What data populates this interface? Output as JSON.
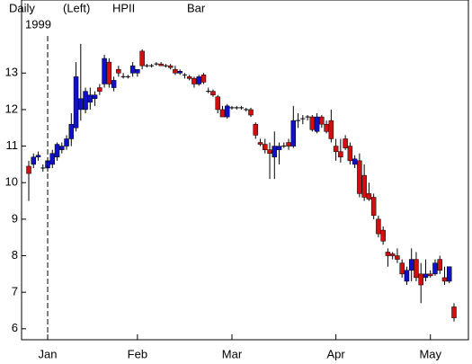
{
  "chart_data": {
    "type": "candlestick",
    "period": "Daily",
    "year": "1999",
    "scale": "(Left)",
    "symbol": "HPII",
    "style": "Bar",
    "up_color": "#1010c8",
    "down_color": "#d01010",
    "ylim": [
      5.7,
      15
    ],
    "yticks": [
      6,
      7,
      8,
      9,
      10,
      11,
      12,
      13
    ],
    "categories": [
      null,
      null,
      null,
      null,
      "Jan",
      null,
      null,
      null,
      null,
      null,
      null,
      null,
      null,
      null,
      null,
      null,
      null,
      null,
      null,
      null,
      null,
      null,
      null,
      "Feb",
      null,
      null,
      null,
      null,
      null,
      null,
      null,
      null,
      null,
      null,
      null,
      null,
      null,
      null,
      null,
      null,
      null,
      null,
      null,
      "Mar",
      null,
      null,
      null,
      null,
      null,
      null,
      null,
      null,
      null,
      null,
      null,
      null,
      null,
      null,
      null,
      null,
      null,
      null,
      null,
      null,
      null,
      "Apr",
      null,
      null,
      null,
      null,
      null,
      null,
      null,
      null,
      null,
      null,
      null,
      null,
      null,
      null,
      null,
      null,
      null,
      null,
      null,
      "May",
      null,
      null,
      null,
      null,
      null
    ],
    "open": [
      10.45,
      10.5,
      10.7,
      10.4,
      10.4,
      10.5,
      10.7,
      10.9,
      11.0,
      11.2,
      11.5,
      12.0,
      12.0,
      12.2,
      12.3,
      12.6,
      12.7,
      13.3,
      12.6,
      13.1,
      12.9,
      12.9,
      13.0,
      13.0,
      13.6,
      13.2,
      13.2,
      13.25,
      13.25,
      13.2,
      13.2,
      13.1,
      13.0,
      12.95,
      12.9,
      12.85,
      12.7,
      12.95,
      12.5,
      12.5,
      12.35,
      12.0,
      11.8,
      12.05,
      12.05,
      12.05,
      12.0,
      12.0,
      11.6,
      11.1,
      11.05,
      10.9,
      10.7,
      10.9,
      11.0,
      11.1,
      11.0,
      11.7,
      11.75,
      11.8,
      11.8,
      11.4,
      11.8,
      11.6,
      11.7,
      11.0,
      10.85,
      11.2,
      11.0,
      10.5,
      10.6,
      10.2,
      9.7,
      9.6,
      9.0,
      8.7,
      8.1,
      8.05,
      8.0,
      7.8,
      7.3,
      7.6,
      7.9,
      7.5,
      7.4,
      7.5,
      7.5,
      7.9,
      7.4,
      7.3,
      6.6
    ],
    "high": [
      10.6,
      10.8,
      10.85,
      10.5,
      10.7,
      10.9,
      11.1,
      11.1,
      11.3,
      11.9,
      13.3,
      13.8,
      12.6,
      12.6,
      12.5,
      12.7,
      13.5,
      13.4,
      12.9,
      13.2,
      13.0,
      12.95,
      13.3,
      13.1,
      13.65,
      13.25,
      13.25,
      13.3,
      13.3,
      13.25,
      13.25,
      13.2,
      13.1,
      13.0,
      12.95,
      12.9,
      12.95,
      13.0,
      12.6,
      12.55,
      12.4,
      12.1,
      12.15,
      12.1,
      12.1,
      12.1,
      12.05,
      12.05,
      11.65,
      11.2,
      11.2,
      11.1,
      11.4,
      11.1,
      11.1,
      11.2,
      12.1,
      11.9,
      11.85,
      11.85,
      11.85,
      11.9,
      11.85,
      11.7,
      12.0,
      11.2,
      11.2,
      11.3,
      11.1,
      10.75,
      10.8,
      10.5,
      10.0,
      9.7,
      9.1,
      8.8,
      8.2,
      8.1,
      8.2,
      7.9,
      7.7,
      8.2,
      8.1,
      7.8,
      7.9,
      7.6,
      7.9,
      8.0,
      7.7,
      7.7,
      6.7
    ],
    "low": [
      9.5,
      10.4,
      10.6,
      10.3,
      10.3,
      10.4,
      10.6,
      10.8,
      10.9,
      11.0,
      11.4,
      11.7,
      11.9,
      12.0,
      12.1,
      12.4,
      12.6,
      12.6,
      12.5,
      12.9,
      12.85,
      12.85,
      12.9,
      12.9,
      13.1,
      13.15,
      13.15,
      13.2,
      13.2,
      13.15,
      13.1,
      12.95,
      12.95,
      12.85,
      12.8,
      12.6,
      12.65,
      12.7,
      12.45,
      12.35,
      11.9,
      11.8,
      11.75,
      12.0,
      12.0,
      12.0,
      11.95,
      11.8,
      11.2,
      11.0,
      10.8,
      10.1,
      10.1,
      10.5,
      10.95,
      10.9,
      10.95,
      11.5,
      11.6,
      11.7,
      11.4,
      11.35,
      11.5,
      11.35,
      11.1,
      10.6,
      10.55,
      10.9,
      10.5,
      10.4,
      9.6,
      9.5,
      9.5,
      9.0,
      8.5,
      8.3,
      7.7,
      7.9,
      7.8,
      7.4,
      7.2,
      7.3,
      7.3,
      6.7,
      7.3,
      7.4,
      7.45,
      7.5,
      7.2,
      7.25,
      6.2
    ],
    "close": [
      10.25,
      10.7,
      10.75,
      10.4,
      10.6,
      10.8,
      11.05,
      11.0,
      11.2,
      11.6,
      12.9,
      12.3,
      12.5,
      12.4,
      12.4,
      12.5,
      13.4,
      12.7,
      12.8,
      13.0,
      12.9,
      12.9,
      13.2,
      13.1,
      13.2,
      13.2,
      13.2,
      13.25,
      13.2,
      13.2,
      13.15,
      13.0,
      13.05,
      12.95,
      12.85,
      12.7,
      12.9,
      12.75,
      12.5,
      12.4,
      12.0,
      11.8,
      12.1,
      12.05,
      12.05,
      12.05,
      12.0,
      11.85,
      11.3,
      11.05,
      10.9,
      10.8,
      11.0,
      11.0,
      11.0,
      11.0,
      11.7,
      11.7,
      11.75,
      11.8,
      11.45,
      11.8,
      11.6,
      11.4,
      11.2,
      10.85,
      10.7,
      10.95,
      10.6,
      10.65,
      9.7,
      9.6,
      9.55,
      9.1,
      8.6,
      8.4,
      8.0,
      8.0,
      7.9,
      7.5,
      7.6,
      7.9,
      7.4,
      7.2,
      7.5,
      7.45,
      7.8,
      7.6,
      7.3,
      7.7,
      6.3
    ]
  }
}
